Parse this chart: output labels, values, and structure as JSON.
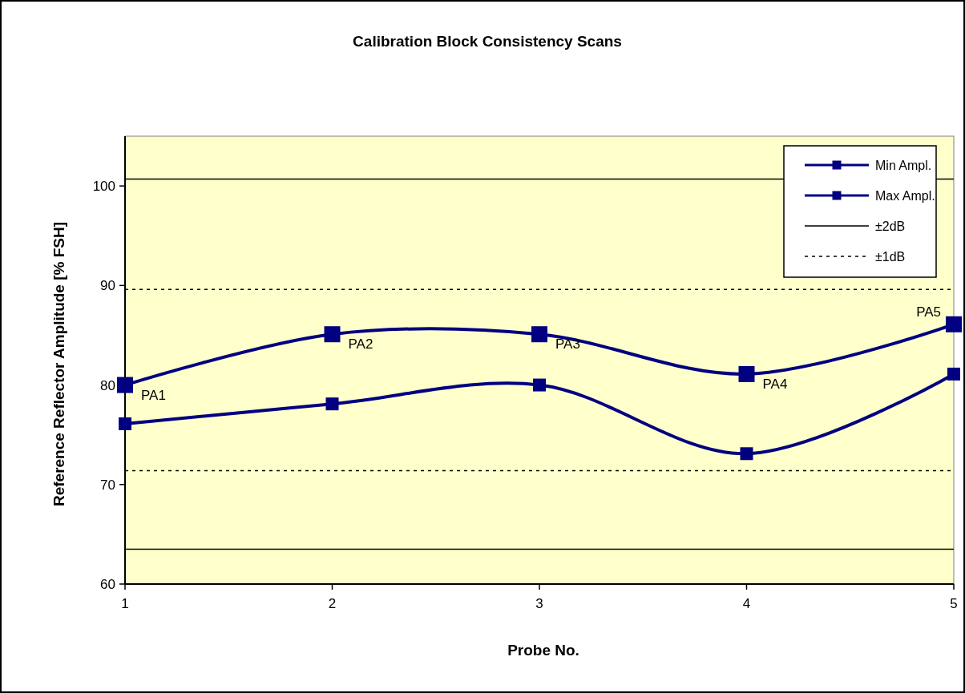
{
  "chart_data": {
    "type": "line",
    "title": "Calibration Block Consistency Scans",
    "xlabel": "Probe No.",
    "ylabel": "Reference Reflector Amplitude [% FSH]",
    "x": [
      1,
      2,
      3,
      4,
      5
    ],
    "series": [
      {
        "name": "Min Ampl.",
        "color": "#000080",
        "values": [
          76.1,
          78.1,
          80.0,
          73.1,
          81.1
        ]
      },
      {
        "name": "Max Ampl.",
        "color": "#000080",
        "values": [
          80.0,
          85.1,
          85.1,
          81.1,
          86.1
        ]
      }
    ],
    "xlim": [
      1,
      5
    ],
    "xticks": [
      1,
      2,
      3,
      4,
      5
    ],
    "ylim": [
      60,
      105
    ],
    "yticks": [
      60,
      70,
      80,
      90,
      100
    ],
    "ref_lines": [
      {
        "axis": "y",
        "value": 100.7,
        "label": "±2dB",
        "color": "#000000",
        "line_style": "solid"
      },
      {
        "axis": "y",
        "value": 63.5,
        "color": "#000000",
        "line_style": "solid"
      },
      {
        "axis": "y",
        "value": 89.6,
        "label": "±1dB",
        "color": "#000000",
        "line_style": "dotted"
      },
      {
        "axis": "y",
        "value": 71.4,
        "color": "#000000",
        "line_style": "dotted"
      }
    ],
    "annotations": [
      {
        "text": "PA1",
        "x": 1,
        "y": 80.0
      },
      {
        "text": "PA2",
        "x": 2,
        "y": 85.1
      },
      {
        "text": "PA3",
        "x": 3,
        "y": 85.1
      },
      {
        "text": "PA4",
        "x": 4,
        "y": 81.1
      },
      {
        "text": "PA5",
        "x": 5,
        "y": 86.1
      }
    ],
    "marker": "square",
    "line_style": "solid",
    "grid": false,
    "legend": "top right"
  }
}
